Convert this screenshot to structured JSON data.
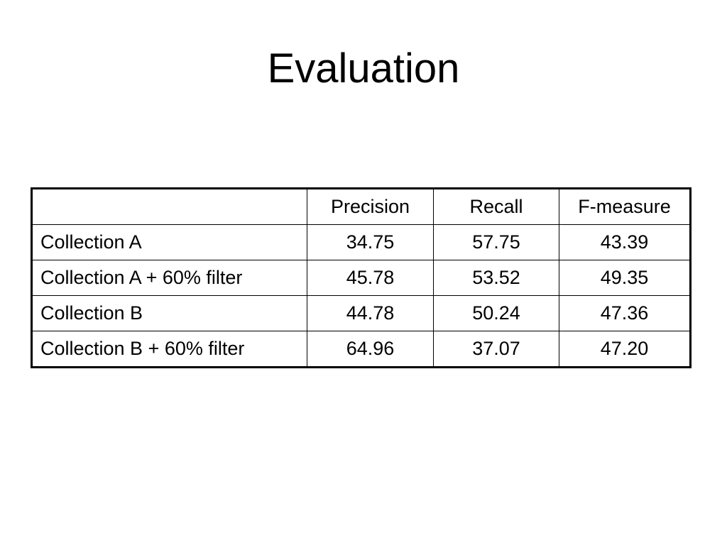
{
  "title": "Evaluation",
  "table": {
    "columns": [
      "Precision",
      "Recall",
      "F-measure"
    ],
    "rows": [
      [
        "Collection A",
        "34.75",
        "57.75",
        "43.39"
      ],
      [
        "Collection A + 60% filter",
        "45.78",
        "53.52",
        "49.35"
      ],
      [
        "Collection B",
        "44.78",
        "50.24",
        "47.36"
      ],
      [
        "Collection B + 60% filter",
        "64.96",
        "37.07",
        "47.20"
      ]
    ]
  }
}
